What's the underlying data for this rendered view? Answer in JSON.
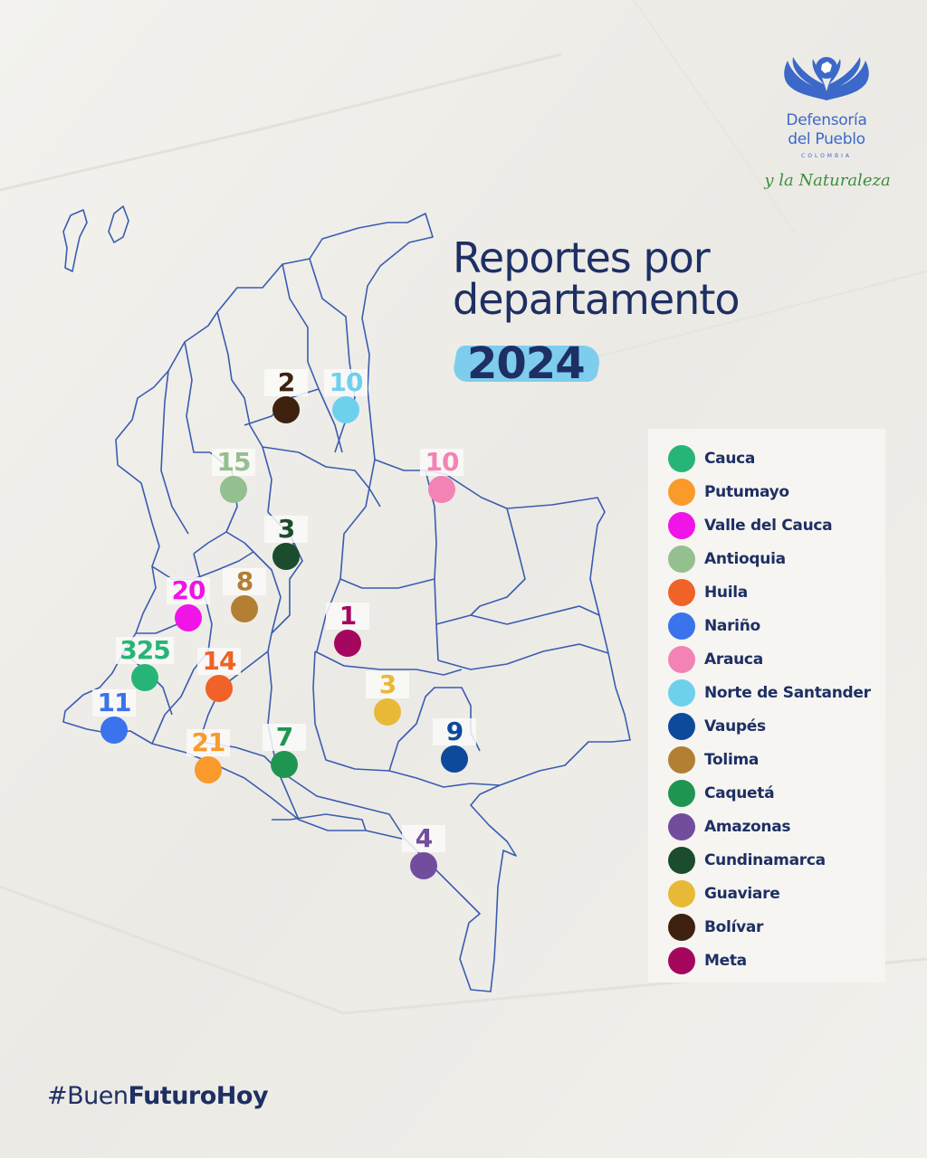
{
  "header": {
    "logo_name_line1": "Defensoría",
    "logo_name_line2": "del Pueblo",
    "logo_country": "COLOMBIA",
    "logo_tagline": "y la Naturaleza",
    "title_line1": "Reportes por",
    "title_line2": "departamento",
    "year": "2024"
  },
  "legend": [
    {
      "label": "Cauca",
      "color": "#27b577"
    },
    {
      "label": "Putumayo",
      "color": "#f99a2b"
    },
    {
      "label": "Valle del Cauca",
      "color": "#f014e8"
    },
    {
      "label": "Antioquia",
      "color": "#94c08f"
    },
    {
      "label": "Huila",
      "color": "#f06227"
    },
    {
      "label": "Nariño",
      "color": "#3a73ec"
    },
    {
      "label": "Arauca",
      "color": "#f383b4"
    },
    {
      "label": "Norte de Santander",
      "color": "#6dd1ee"
    },
    {
      "label": "Vaupés",
      "color": "#0d4a9c"
    },
    {
      "label": "Tolima",
      "color": "#b27f33"
    },
    {
      "label": "Caquetá",
      "color": "#209552"
    },
    {
      "label": "Amazonas",
      "color": "#724d9e"
    },
    {
      "label": "Cundinamarca",
      "color": "#1b4c2d"
    },
    {
      "label": "Guaviare",
      "color": "#e8b936"
    },
    {
      "label": "Bolívar",
      "color": "#3f2110"
    },
    {
      "label": "Meta",
      "color": "#a5075f"
    }
  ],
  "map_markers": [
    {
      "department": "Bolívar",
      "value": "2",
      "color": "#3f2110"
    },
    {
      "department": "Norte de Santander",
      "value": "10",
      "color": "#6dd1ee"
    },
    {
      "department": "Antioquia",
      "value": "15",
      "color": "#94c08f"
    },
    {
      "department": "Arauca",
      "value": "10",
      "color": "#f383b4"
    },
    {
      "department": "Cundinamarca",
      "value": "3",
      "color": "#1b4c2d"
    },
    {
      "department": "Valle del Cauca",
      "value": "20",
      "color": "#f014e8"
    },
    {
      "department": "Tolima",
      "value": "8",
      "color": "#b27f33"
    },
    {
      "department": "Meta",
      "value": "1",
      "color": "#a5075f"
    },
    {
      "department": "Cauca",
      "value": "325",
      "color": "#27b577"
    },
    {
      "department": "Huila",
      "value": "14",
      "color": "#f06227"
    },
    {
      "department": "Guaviare",
      "value": "3",
      "color": "#e8b936"
    },
    {
      "department": "Nariño",
      "value": "11",
      "color": "#3a73ec"
    },
    {
      "department": "Vaupés",
      "value": "9",
      "color": "#0d4a9c"
    },
    {
      "department": "Putumayo",
      "value": "21",
      "color": "#f99a2b"
    },
    {
      "department": "Caquetá",
      "value": "7",
      "color": "#209552"
    },
    {
      "department": "Amazonas",
      "value": "4",
      "color": "#724d9e"
    }
  ],
  "footer": {
    "hashtag_prefix": "#Buen",
    "hashtag_bold": "FuturoHoy"
  },
  "colors": {
    "map_stroke": "#3a5cb0",
    "title": "#1e2f63",
    "year_highlight": "#7ecdee"
  }
}
